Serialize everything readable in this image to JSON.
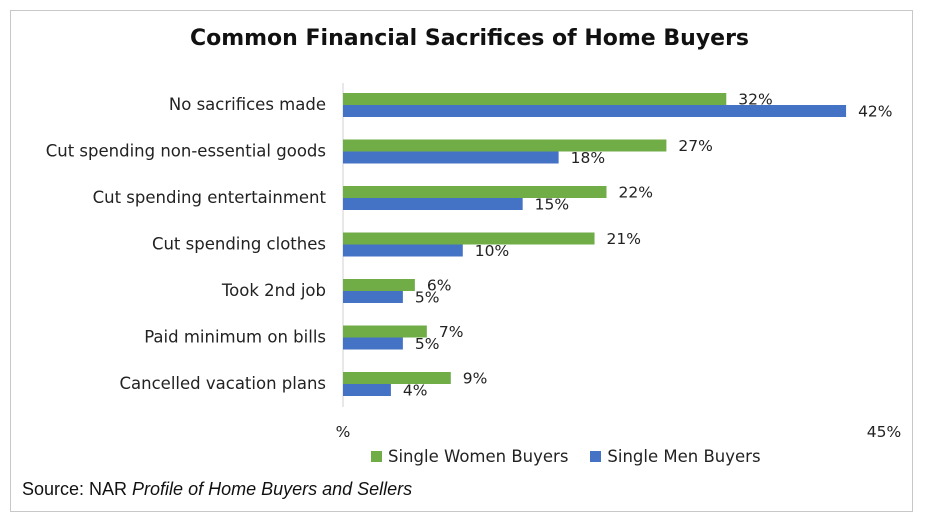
{
  "chart_data": {
    "type": "bar",
    "orientation": "horizontal",
    "title": "Common Financial Sacrifices of Home Buyers",
    "categories": [
      "No sacrifices made",
      "Cut spending non-essential goods",
      "Cut spending entertainment",
      "Cut spending clothes",
      "Took 2nd job",
      "Paid minimum on bills",
      "Cancelled vacation plans"
    ],
    "series": [
      {
        "name": "Single Women Buyers",
        "color": "#70ad47",
        "values": [
          32,
          27,
          22,
          21,
          6,
          7,
          9
        ],
        "labels": [
          "32%",
          "27%",
          "22%",
          "21%",
          "6%",
          "7%",
          "9%"
        ]
      },
      {
        "name": "Single Men Buyers",
        "color": "#4472c4",
        "values": [
          42,
          18,
          15,
          10,
          5,
          5,
          4
        ],
        "labels": [
          "42%",
          "18%",
          "15%",
          "10%",
          "5%",
          "5%",
          "4%"
        ]
      }
    ],
    "xlim": [
      0,
      45
    ],
    "x_ticks": [
      "%",
      "45%"
    ],
    "grid": false,
    "legend_position": "bottom"
  },
  "source": {
    "prefix": "Source: NAR ",
    "italic": "Profile of Home Buyers and Sellers"
  }
}
